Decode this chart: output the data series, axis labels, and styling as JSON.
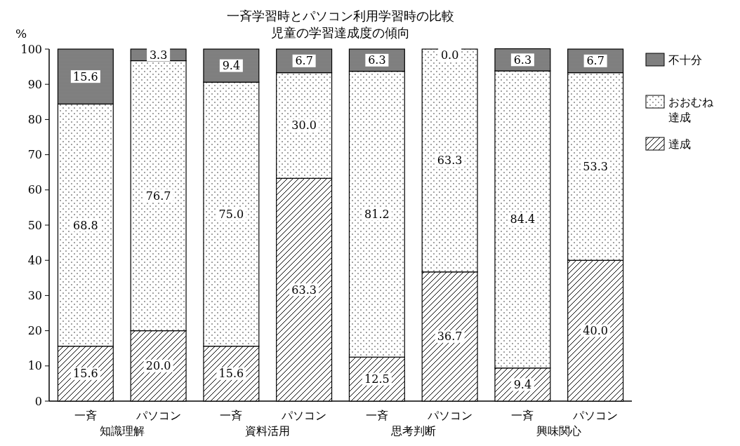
{
  "chart_data": {
    "type": "bar",
    "stacked": true,
    "title": "一斉学習時とパソコン利用学習時の比較",
    "subtitle": "児童の学習達成度の傾向",
    "ylabel": "%",
    "categories": [
      "一斉",
      "パソコン",
      "一斉",
      "パソコン",
      "一斉",
      "パソコン",
      "一斉",
      "パソコン"
    ],
    "series": [
      {
        "name": "達成",
        "color": "#000000",
        "values": [
          15.6,
          20.0,
          15.6,
          63.3,
          12.5,
          36.7,
          9.4,
          40.0
        ],
        "value_labels": [
          "15.6",
          "20.0",
          "15.6",
          "63.3",
          "12.5",
          "36.7",
          "9.4",
          "40.0"
        ]
      },
      {
        "name": "おおむね達成",
        "color": "#000000",
        "values": [
          68.8,
          76.7,
          75.0,
          30.0,
          81.2,
          63.3,
          84.4,
          53.3
        ],
        "value_labels": [
          "68.8",
          "76.7",
          "75.0",
          "30.0",
          "81.2",
          "63.3",
          "84.4",
          "53.3"
        ]
      },
      {
        "name": "不十分",
        "color": "#000000",
        "values": [
          15.6,
          3.3,
          9.4,
          6.7,
          6.3,
          0.0,
          6.3,
          6.7
        ],
        "value_labels": [
          "15.6",
          "3.3",
          "9.4",
          "6.7",
          "6.3",
          "0.0",
          "6.3",
          "6.7"
        ]
      }
    ],
    "annotations": [
      "知識理解",
      "資料活用",
      "思考判断",
      "興味関心"
    ],
    "ylim": [
      0,
      100
    ],
    "yticks": [
      0,
      10,
      20,
      30,
      40,
      50,
      60,
      70,
      80,
      90,
      100
    ],
    "legend": "top right"
  }
}
